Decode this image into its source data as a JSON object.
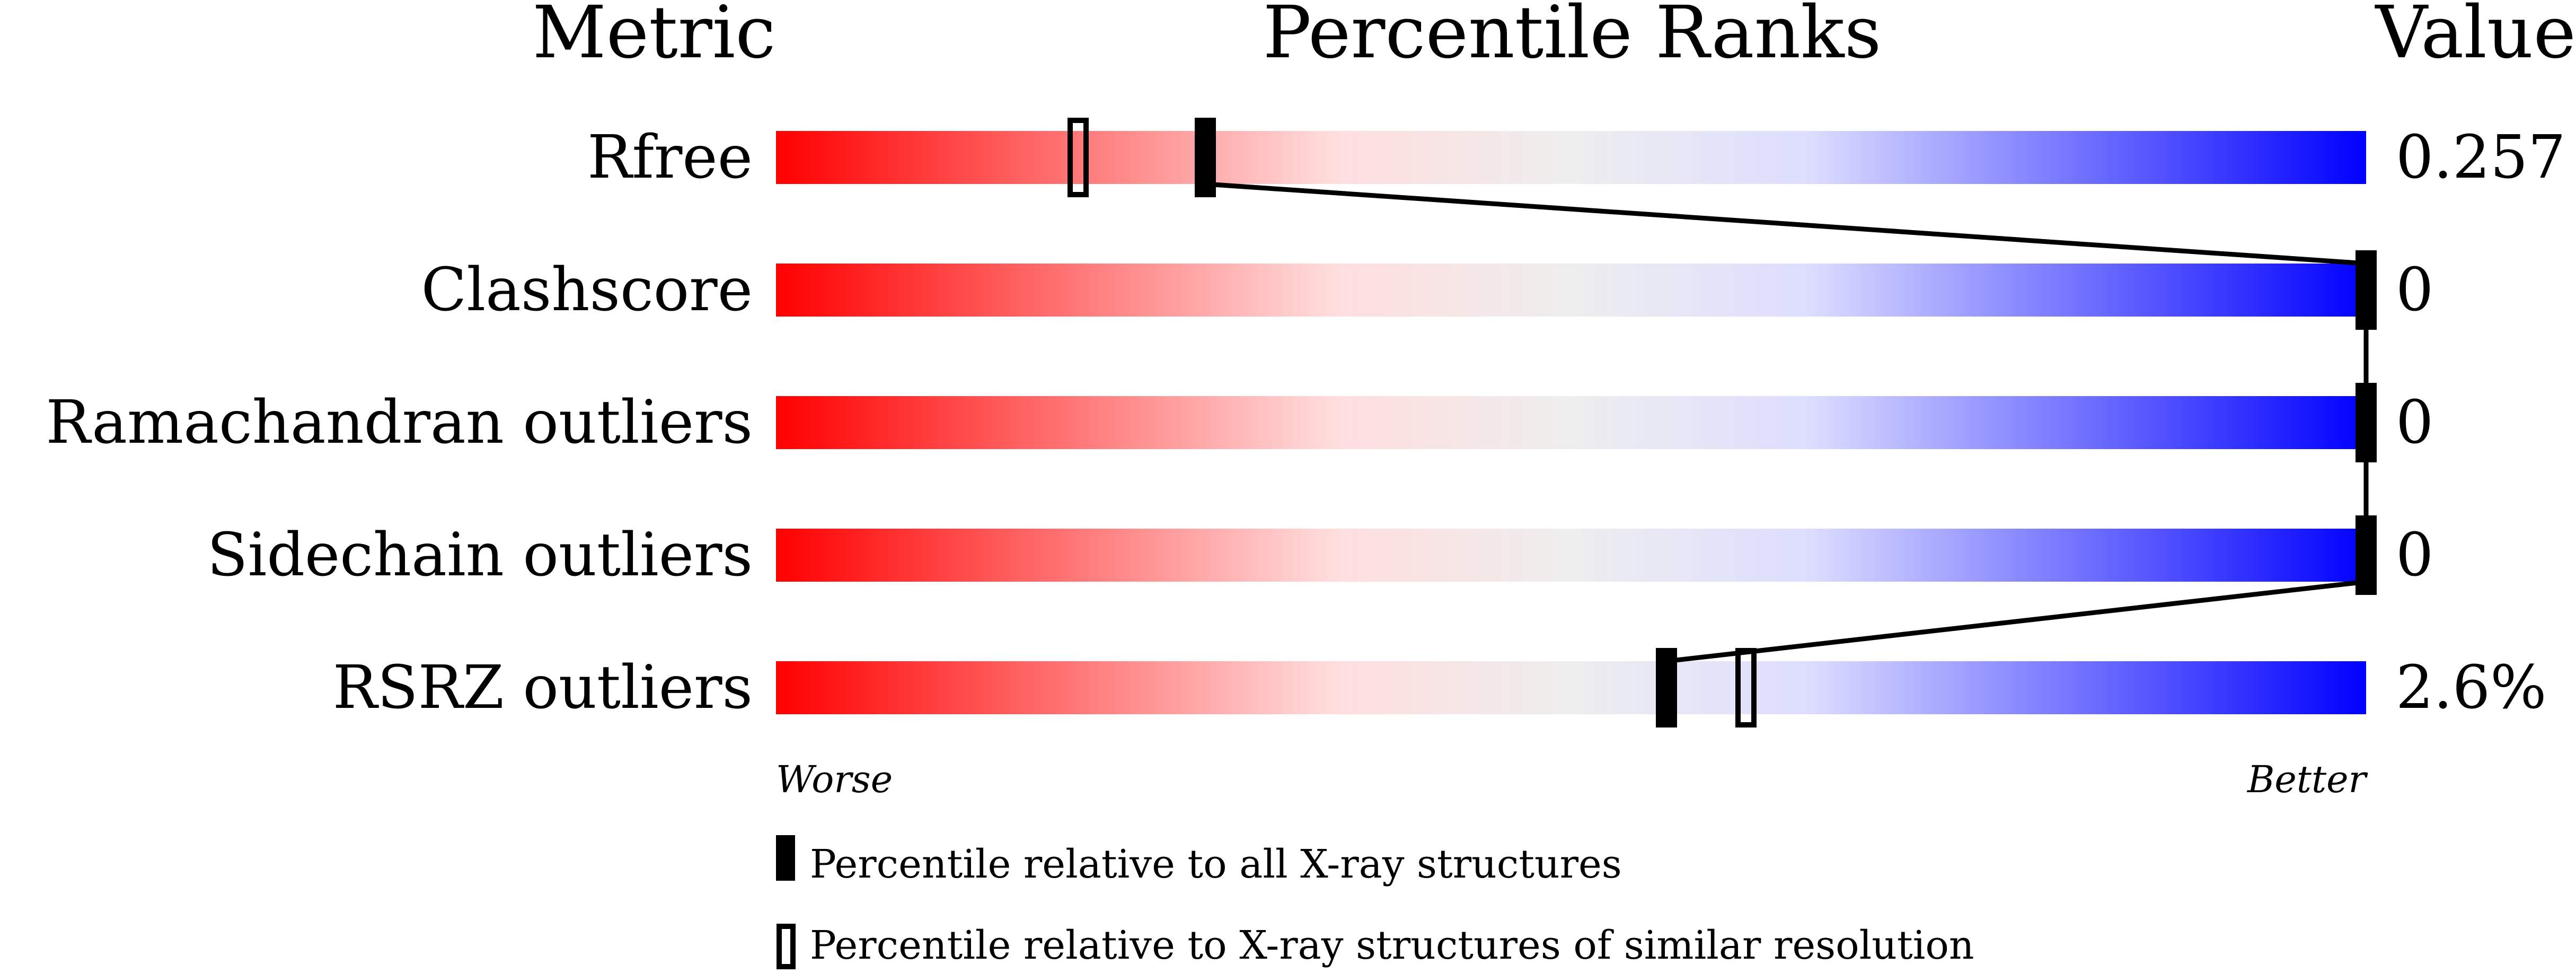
{
  "chart_data": {
    "type": "percentile-bars",
    "headers": {
      "metric": "Metric",
      "ranks": "Percentile Ranks",
      "value": "Value"
    },
    "xlim": [
      0,
      100
    ],
    "axis_labels": {
      "left": "Worse",
      "right": "Better"
    },
    "gradient_colors": [
      "#ff0000",
      "#ffdddd",
      "#eeeeee",
      "#ddddff",
      "#0000ff"
    ],
    "rows": [
      {
        "metric": "Rfree",
        "value": "0.257",
        "percentile_all": 27,
        "percentile_similar": 19
      },
      {
        "metric": "Clashscore",
        "value": "0",
        "percentile_all": 100,
        "percentile_similar": 100
      },
      {
        "metric": "Ramachandran outliers",
        "value": "0",
        "percentile_all": 100,
        "percentile_similar": 100
      },
      {
        "metric": "Sidechain outliers",
        "value": "0",
        "percentile_all": 100,
        "percentile_similar": 100
      },
      {
        "metric": "RSRZ outliers",
        "value": "2.6%",
        "percentile_all": 56,
        "percentile_similar": 61
      }
    ],
    "legend": [
      {
        "marker": "filled",
        "label": "Percentile relative to all X-ray structures"
      },
      {
        "marker": "open",
        "label": "Percentile relative to X-ray structures of similar resolution"
      }
    ]
  }
}
